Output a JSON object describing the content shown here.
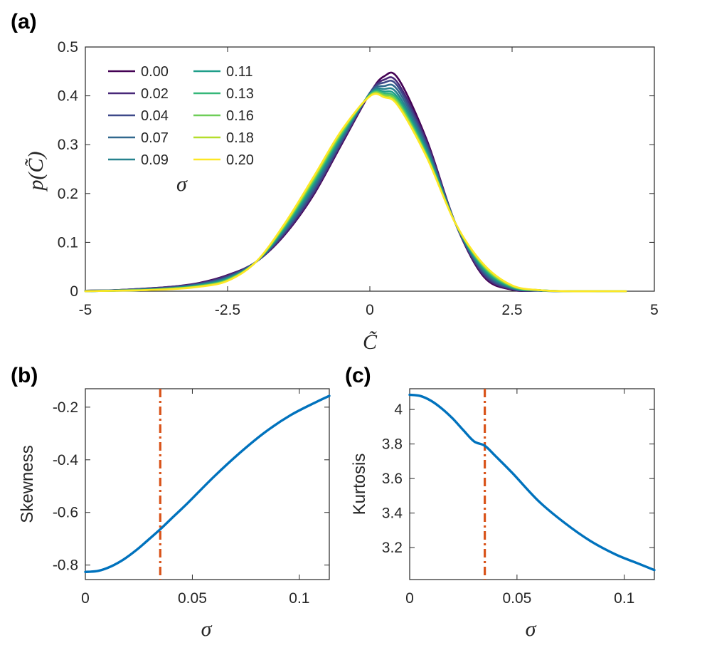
{
  "chart_data": [
    {
      "panel": "(a)",
      "type": "line",
      "xlabel": "C̃",
      "ylabel": "p(C̃)",
      "xlim": [
        -5,
        5
      ],
      "ylim": [
        0,
        0.5
      ],
      "xticks": [
        -5,
        -2.5,
        0,
        2.5,
        5
      ],
      "xtick_labels": [
        "-5",
        "-2.5",
        "0",
        "2.5",
        "5"
      ],
      "yticks": [
        0,
        0.1,
        0.2,
        0.3,
        0.4,
        0.5
      ],
      "ytick_labels": [
        "0",
        "0.1",
        "0.2",
        "0.3",
        "0.4",
        "0.5"
      ],
      "legend_title": "σ",
      "legend_position": "top-left",
      "legend_columns": 2,
      "x": [
        -5,
        -4.5,
        -4,
        -3.5,
        -3,
        -2.5,
        -2,
        -1.5,
        -1,
        -0.5,
        0,
        0.25,
        0.5,
        1,
        1.5,
        2,
        2.5,
        3,
        3.5,
        4,
        4.5
      ],
      "series": [
        {
          "name": "0.00",
          "color": "#440154",
          "values": [
            0.001,
            0.002,
            0.005,
            0.009,
            0.017,
            0.033,
            0.06,
            0.115,
            0.195,
            0.3,
            0.405,
            0.44,
            0.435,
            0.31,
            0.14,
            0.03,
            0.003,
            0.001,
            0.0,
            0.0,
            0.0
          ]
        },
        {
          "name": "0.02",
          "color": "#482878",
          "values": [
            0.001,
            0.002,
            0.005,
            0.009,
            0.016,
            0.032,
            0.06,
            0.117,
            0.198,
            0.303,
            0.406,
            0.433,
            0.425,
            0.305,
            0.14,
            0.033,
            0.004,
            0.001,
            0.0,
            0.0,
            0.0
          ]
        },
        {
          "name": "0.04",
          "color": "#3e4989",
          "values": [
            0.001,
            0.002,
            0.004,
            0.008,
            0.015,
            0.03,
            0.06,
            0.12,
            0.202,
            0.306,
            0.406,
            0.427,
            0.418,
            0.3,
            0.14,
            0.036,
            0.005,
            0.001,
            0.0,
            0.0,
            0.0
          ]
        },
        {
          "name": "0.07",
          "color": "#31688e",
          "values": [
            0.001,
            0.002,
            0.004,
            0.007,
            0.014,
            0.028,
            0.06,
            0.123,
            0.208,
            0.31,
            0.405,
            0.42,
            0.41,
            0.295,
            0.14,
            0.04,
            0.006,
            0.001,
            0.0,
            0.0,
            0.0
          ]
        },
        {
          "name": "0.09",
          "color": "#26828e",
          "values": [
            0.0,
            0.001,
            0.003,
            0.006,
            0.013,
            0.027,
            0.06,
            0.126,
            0.213,
            0.314,
            0.404,
            0.414,
            0.402,
            0.29,
            0.14,
            0.043,
            0.007,
            0.001,
            0.0,
            0.0,
            0.0
          ]
        },
        {
          "name": "0.11",
          "color": "#1f9e89",
          "values": [
            0.0,
            0.001,
            0.003,
            0.006,
            0.012,
            0.025,
            0.06,
            0.129,
            0.218,
            0.318,
            0.403,
            0.409,
            0.395,
            0.285,
            0.14,
            0.046,
            0.008,
            0.002,
            0.0,
            0.0,
            0.0
          ]
        },
        {
          "name": "0.13",
          "color": "#35b779",
          "values": [
            0.0,
            0.001,
            0.003,
            0.005,
            0.011,
            0.024,
            0.06,
            0.132,
            0.222,
            0.321,
            0.402,
            0.405,
            0.39,
            0.281,
            0.14,
            0.049,
            0.009,
            0.002,
            0.0,
            0.0,
            0.0
          ]
        },
        {
          "name": "0.16",
          "color": "#6ece58",
          "values": [
            0.0,
            0.001,
            0.002,
            0.005,
            0.01,
            0.023,
            0.06,
            0.134,
            0.226,
            0.324,
            0.401,
            0.402,
            0.386,
            0.278,
            0.14,
            0.051,
            0.01,
            0.002,
            0.0,
            0.0,
            0.0
          ]
        },
        {
          "name": "0.18",
          "color": "#b5de2b",
          "values": [
            0.0,
            0.001,
            0.002,
            0.005,
            0.01,
            0.022,
            0.06,
            0.136,
            0.229,
            0.327,
            0.4,
            0.399,
            0.382,
            0.276,
            0.14,
            0.053,
            0.011,
            0.002,
            0.0,
            0.0,
            0.0
          ]
        },
        {
          "name": "0.20",
          "color": "#fde725",
          "values": [
            0.0,
            0.001,
            0.002,
            0.004,
            0.009,
            0.021,
            0.06,
            0.138,
            0.232,
            0.329,
            0.399,
            0.397,
            0.379,
            0.274,
            0.14,
            0.055,
            0.012,
            0.002,
            0.0,
            0.0,
            0.0
          ]
        }
      ]
    },
    {
      "panel": "(b)",
      "type": "line",
      "xlabel": "σ",
      "ylabel": "Skewness",
      "xlim": [
        0,
        0.114
      ],
      "ylim": [
        -0.855,
        -0.13
      ],
      "xticks": [
        0,
        0.05,
        0.1
      ],
      "xtick_labels": [
        "0",
        "0.05",
        "0.1"
      ],
      "yticks": [
        -0.8,
        -0.6,
        -0.4,
        -0.2
      ],
      "ytick_labels": [
        "-0.8",
        "-0.6",
        "-0.4",
        "-0.2"
      ],
      "vline": {
        "x": 0.035,
        "color": "#d95319",
        "style": "dash-dot"
      },
      "series": [
        {
          "name": "Skewness",
          "color": "#0072bd",
          "x": [
            0,
            0.006,
            0.012,
            0.018,
            0.024,
            0.03,
            0.035,
            0.04,
            0.048,
            0.06,
            0.072,
            0.084,
            0.096,
            0.108,
            0.114
          ],
          "values": [
            -0.826,
            -0.822,
            -0.805,
            -0.778,
            -0.742,
            -0.7,
            -0.664,
            -0.625,
            -0.563,
            -0.465,
            -0.375,
            -0.295,
            -0.23,
            -0.18,
            -0.157
          ]
        }
      ]
    },
    {
      "panel": "(c)",
      "type": "line",
      "xlabel": "σ",
      "ylabel": "Kurtosis",
      "xlim": [
        0,
        0.114
      ],
      "ylim": [
        3.015,
        4.12
      ],
      "xticks": [
        0,
        0.05,
        0.1
      ],
      "xtick_labels": [
        "0",
        "0.05",
        "0.1"
      ],
      "yticks": [
        3.2,
        3.4,
        3.6,
        3.8,
        4
      ],
      "ytick_labels": [
        "3.2",
        "3.4",
        "3.6",
        "3.8",
        "4"
      ],
      "vline": {
        "x": 0.035,
        "color": "#d95319",
        "style": "dash-dot"
      },
      "series": [
        {
          "name": "Kurtosis",
          "color": "#0072bd",
          "x": [
            0,
            0.005,
            0.01,
            0.015,
            0.02,
            0.025,
            0.03,
            0.035,
            0.04,
            0.048,
            0.06,
            0.072,
            0.084,
            0.096,
            0.106,
            0.114
          ],
          "values": [
            4.085,
            4.078,
            4.05,
            4.005,
            3.948,
            3.88,
            3.815,
            3.79,
            3.73,
            3.63,
            3.47,
            3.345,
            3.24,
            3.16,
            3.11,
            3.07
          ]
        }
      ]
    }
  ]
}
